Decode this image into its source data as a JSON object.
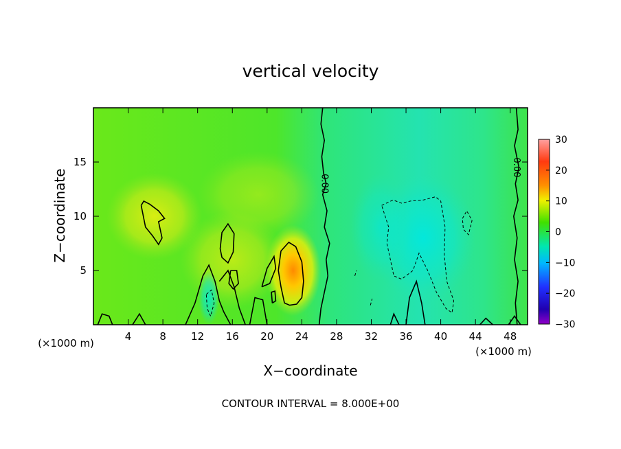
{
  "chart_data": {
    "type": "heatmap",
    "title": "vertical velocity",
    "xlabel": "X−coordinate",
    "ylabel": "Z−coordinate",
    "x_unit_left": "(×1000 m)",
    "x_unit_right": "(×1000 m)",
    "xlim": [
      0,
      50
    ],
    "ylim": [
      0,
      20
    ],
    "xticks": [
      4,
      8,
      12,
      16,
      20,
      24,
      28,
      32,
      36,
      40,
      44,
      48
    ],
    "yticks": [
      5,
      10,
      15
    ],
    "colorbar": {
      "ticks": [
        30,
        20,
        10,
        0,
        -10,
        -20,
        -30
      ],
      "tick_labels": [
        "30",
        "20",
        "10",
        "0",
        "−10",
        "−20",
        "−30"
      ],
      "range": [
        -30,
        30
      ],
      "colors": [
        "#ff9c9c",
        "#ff2a0a",
        "#ff9200",
        "#e6f000",
        "#38e600",
        "#00e6b8",
        "#00aaff",
        "#2040ff",
        "#1a00c8",
        "#8a00c8"
      ]
    },
    "zero_contour_label": "0.00",
    "footer": "CONTOUR INTERVAL = 8.000E+00",
    "contour_interval": 8.0,
    "features": [
      {
        "kind": "updraft",
        "x": 23,
        "z": 5,
        "peak": 14
      },
      {
        "kind": "updraft",
        "x": 6.5,
        "z": 9.5,
        "peak": 9
      },
      {
        "kind": "updraft",
        "x": 15,
        "z": 7.5,
        "peak": 8
      },
      {
        "kind": "downdraft",
        "x": 37.5,
        "z": 8,
        "peak": -9
      }
    ]
  }
}
